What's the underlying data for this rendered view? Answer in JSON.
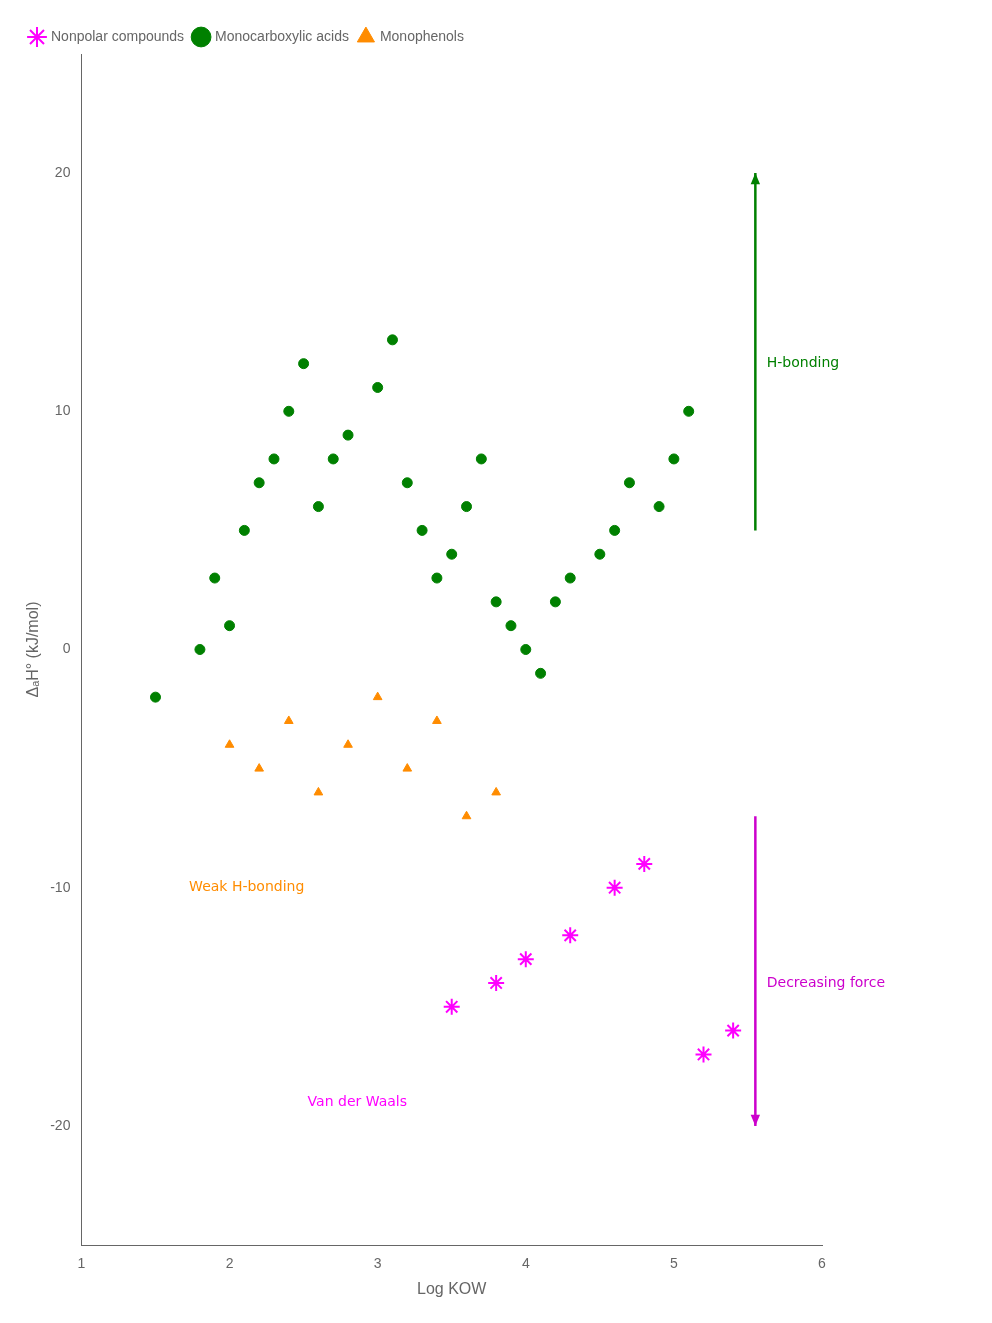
{
  "chart_data": {
    "type": "scatter",
    "xlabel": "Log KOW",
    "ylabel": "ΔₐH° (kJ/mol)",
    "xlim": [
      1,
      6
    ],
    "ylim": [
      -25,
      25
    ],
    "xticks": [
      1,
      2,
      3,
      4,
      5,
      6
    ],
    "yticks": [
      -20,
      -10,
      0,
      10,
      20
    ],
    "grid": false,
    "legend": "upper left",
    "series": [
      {
        "name": "Nonpolar compounds",
        "color": "#ff00ff",
        "marker": "star",
        "x": [
          3.5,
          3.8,
          4.0,
          4.3,
          4.6,
          4.8,
          5.2,
          5.4
        ],
        "values": [
          -15,
          -14,
          -13,
          -12,
          -10,
          -9,
          -17,
          -16
        ]
      },
      {
        "name": "Monocarboxylic acids",
        "color": "#008000",
        "marker": "circle",
        "x": [
          1.5,
          1.8,
          1.9,
          2.0,
          2.1,
          2.2,
          2.3,
          2.4,
          2.5,
          2.6,
          2.7,
          2.8,
          3.0,
          3.1,
          3.2,
          3.3,
          3.4,
          3.5,
          3.6,
          3.7,
          3.8,
          3.9,
          4.0,
          4.1,
          4.2,
          4.3,
          4.5,
          4.6,
          4.7,
          4.9,
          5.0,
          5.1
        ],
        "values": [
          -2,
          0,
          3,
          1,
          5,
          7,
          8,
          10,
          12,
          6,
          8,
          9,
          11,
          13,
          7,
          5,
          3,
          4,
          6,
          8,
          2,
          1,
          0,
          -1,
          2,
          3,
          4,
          5,
          7,
          6,
          8,
          10
        ]
      },
      {
        "name": "Monophenols",
        "color": "#ff8c00",
        "marker": "triangle",
        "x": [
          2.0,
          2.2,
          2.4,
          2.6,
          2.8,
          3.0,
          3.2,
          3.4,
          3.6,
          3.8
        ],
        "values": [
          -4,
          -5,
          -3,
          -6,
          -4,
          -2,
          -5,
          -3,
          -7,
          -6
        ]
      }
    ],
    "annotations": [
      {
        "text": "H-bonding",
        "x": 5.6,
        "y": 12,
        "color": "#008000"
      },
      {
        "text": "Decreasing force",
        "x": 5.6,
        "y": -14,
        "color": "#cc00cc"
      },
      {
        "text": "Weak H-bonding",
        "x": 1.7,
        "y": -10,
        "color": "#ff8c00"
      },
      {
        "text": "Van der Waals",
        "x": 2.5,
        "y": -19,
        "color": "#ff00ff"
      }
    ],
    "arrows": [
      {
        "x": [
          5.55,
          5.55
        ],
        "y": [
          5,
          20
        ],
        "color": "#008000"
      },
      {
        "x": [
          5.55,
          5.55
        ],
        "y": [
          -7,
          -20
        ],
        "color": "#cc00cc"
      }
    ]
  }
}
